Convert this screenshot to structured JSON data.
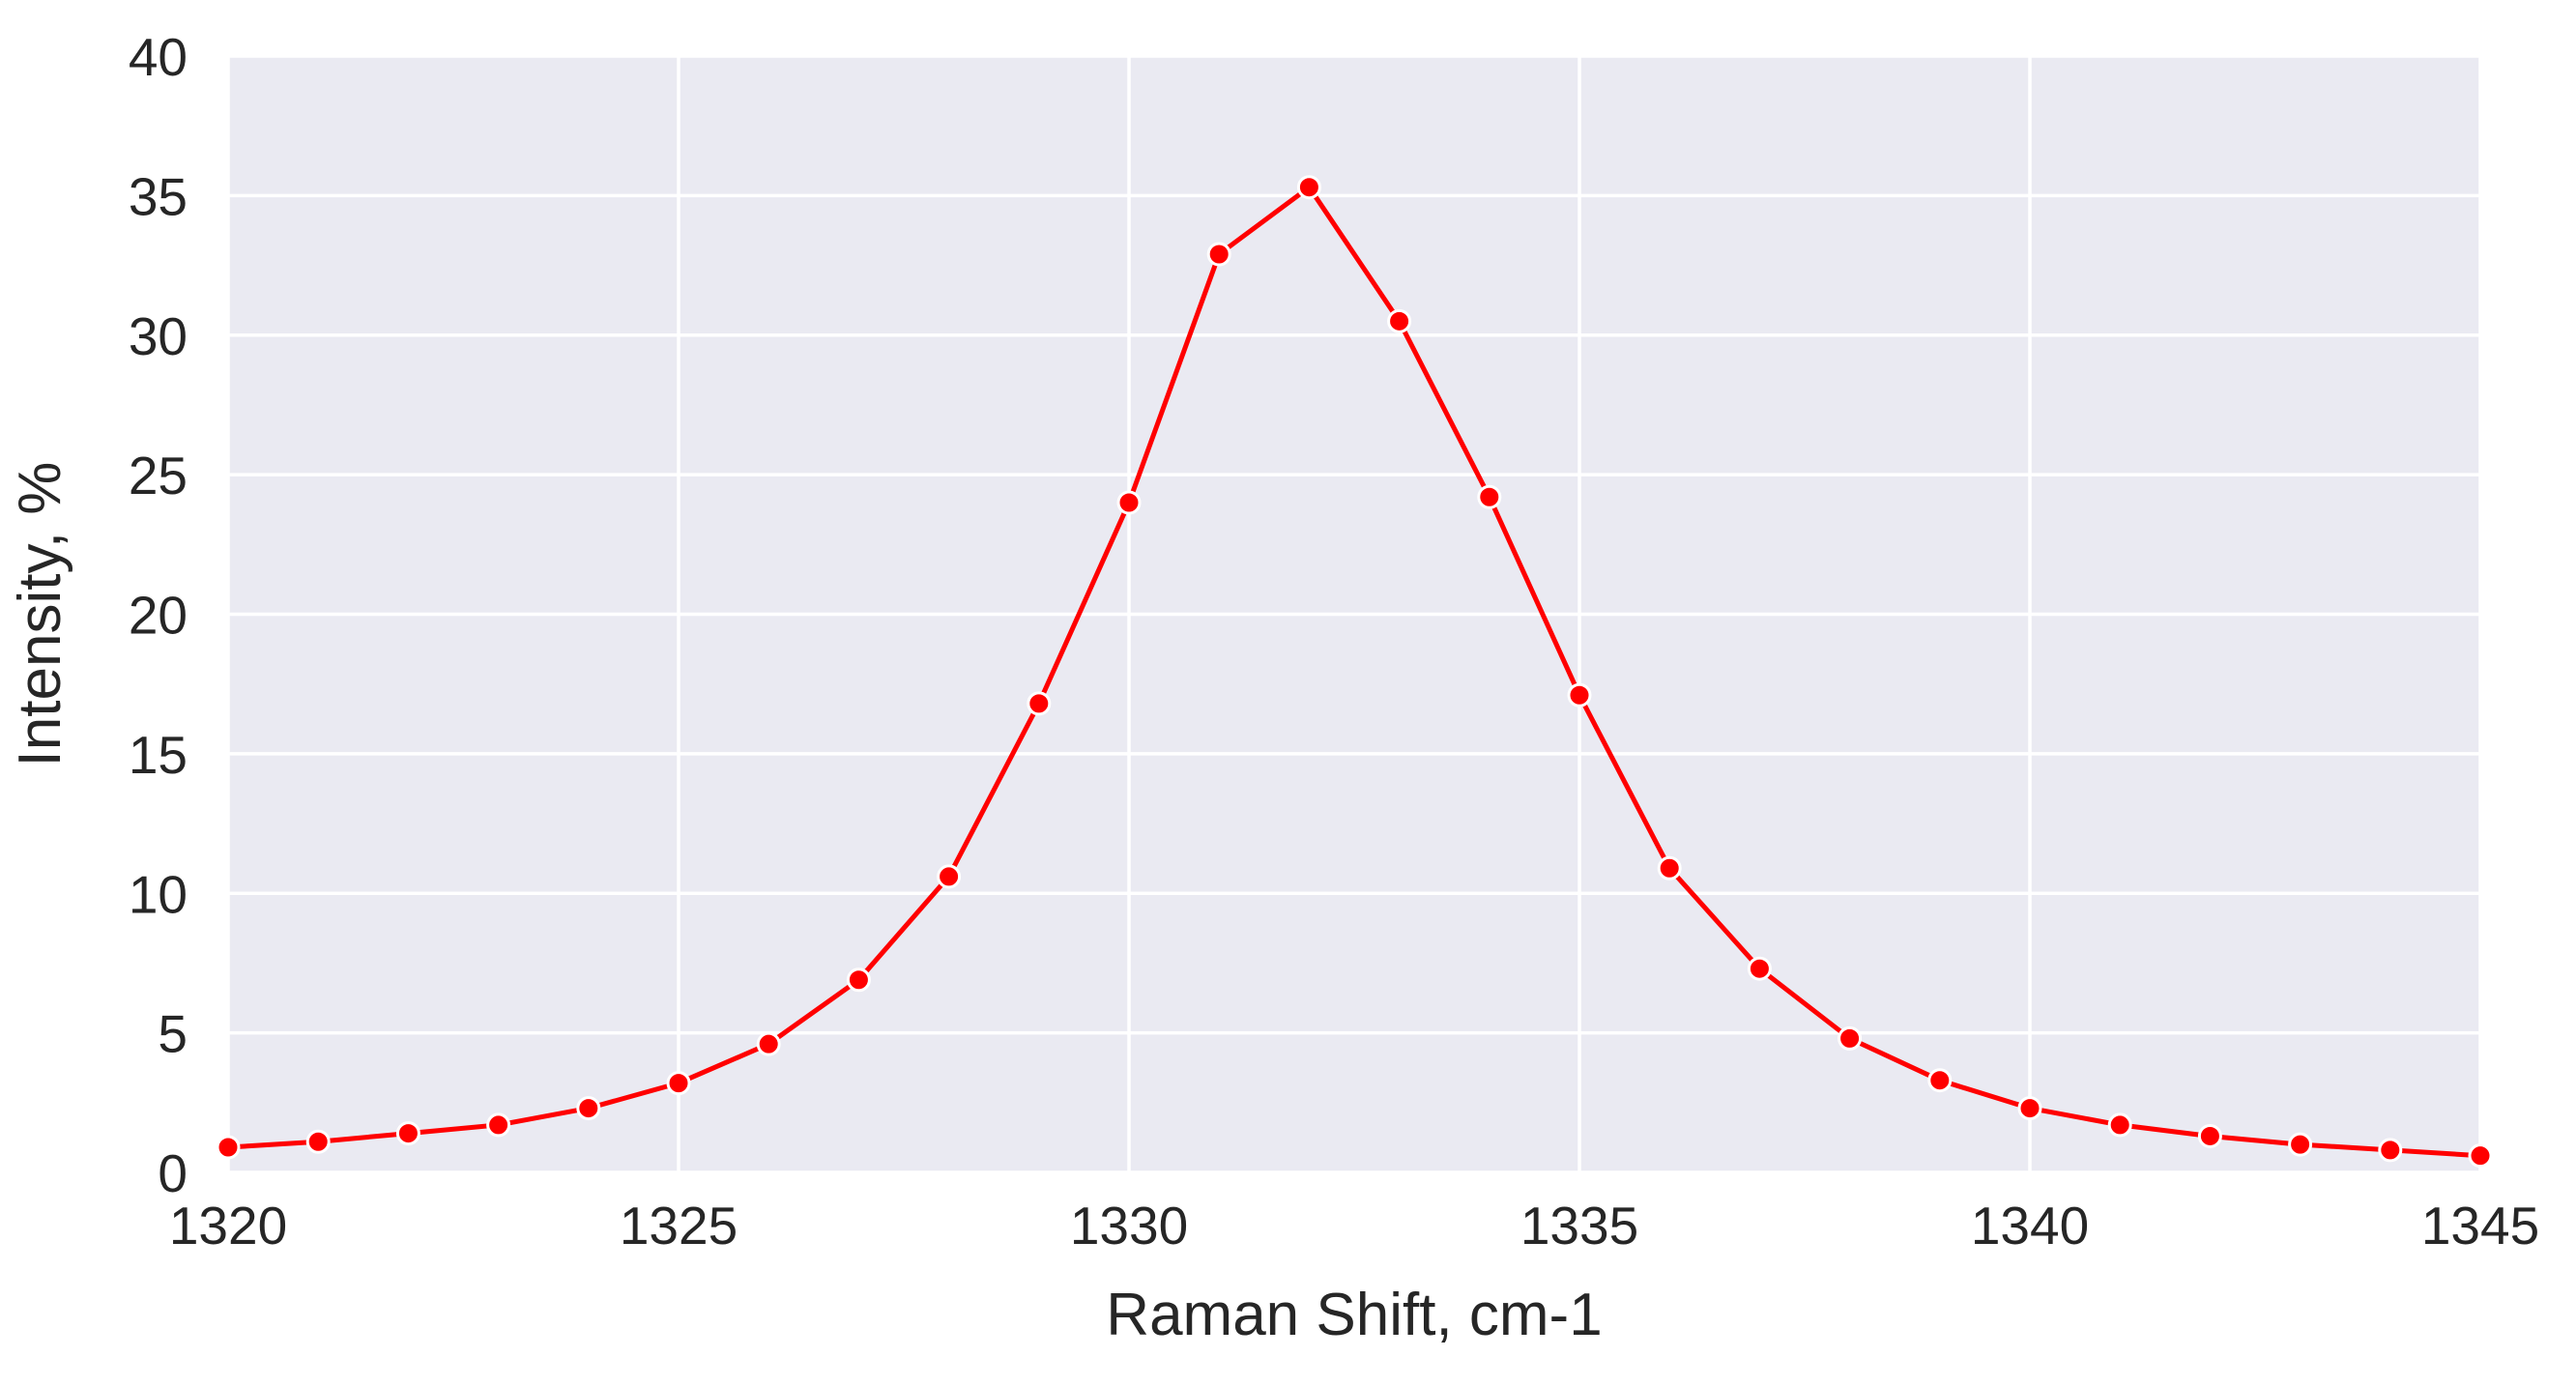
{
  "chart_data": {
    "type": "line",
    "title": "",
    "xlabel": "Raman Shift, cm-1",
    "ylabel": "Intensity, %",
    "xlim": [
      1320,
      1345
    ],
    "ylim": [
      0,
      40
    ],
    "xticks": [
      1320,
      1325,
      1330,
      1335,
      1340,
      1345
    ],
    "yticks": [
      0,
      5,
      10,
      15,
      20,
      25,
      30,
      35,
      40
    ],
    "grid": true,
    "legend": "none",
    "colors": {
      "background": "#eaeaf2",
      "grid": "#ffffff",
      "line": "#ff0000",
      "marker": "#ff0000",
      "marker_edge": "#ffffff",
      "text": "#262626"
    },
    "series": [
      {
        "x": [
          1320,
          1321,
          1322,
          1323,
          1324,
          1325,
          1326,
          1327,
          1328,
          1329,
          1330,
          1331,
          1332,
          1333,
          1334,
          1335,
          1336,
          1337,
          1338,
          1339,
          1340,
          1341,
          1342,
          1343,
          1344,
          1345
        ],
        "y": [
          0.9,
          1.1,
          1.4,
          1.7,
          2.3,
          3.2,
          4.6,
          6.9,
          10.6,
          16.8,
          24.0,
          32.9,
          35.3,
          30.5,
          24.2,
          17.1,
          10.9,
          7.3,
          4.8,
          3.3,
          2.3,
          1.7,
          1.3,
          1.0,
          0.8,
          0.6
        ]
      }
    ]
  }
}
